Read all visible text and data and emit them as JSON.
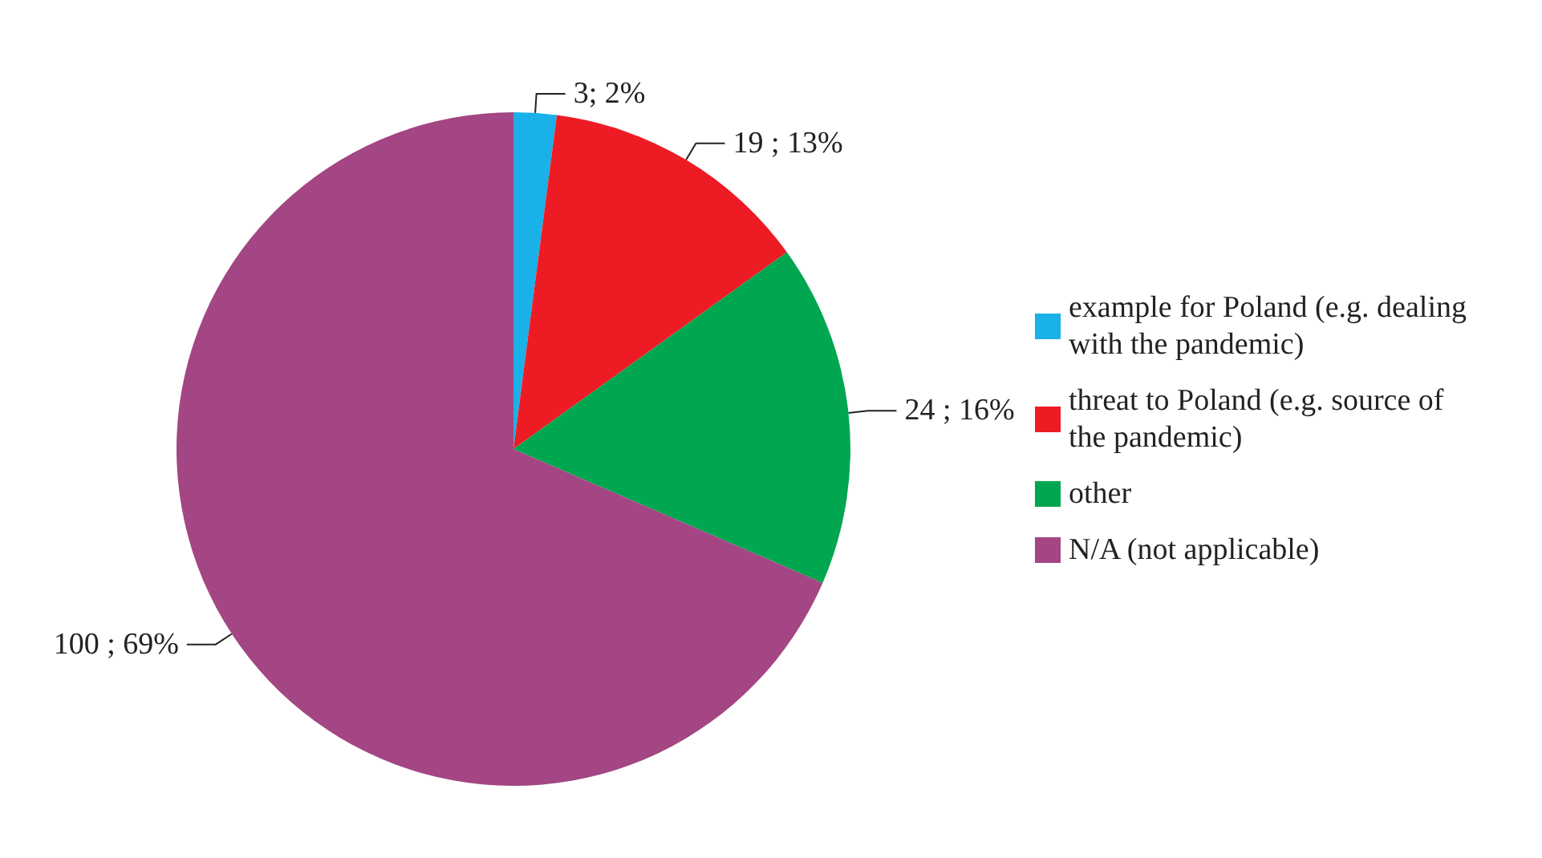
{
  "chart_data": {
    "type": "pie",
    "categories": [
      "example for Poland (e.g. dealing with the pandemic)",
      "threat to Poland (e.g. source of the pandemic)",
      "other",
      "N/A (not applicable)"
    ],
    "values": [
      3,
      19,
      24,
      100
    ],
    "value_labels": [
      "3; 2%",
      "19 ; 13%",
      "24 ; 16%",
      "100 ; 69%"
    ],
    "colors": [
      "#1ab0e8",
      "#ed1c24",
      "#00a650",
      "#a34683"
    ],
    "legend": "right"
  }
}
